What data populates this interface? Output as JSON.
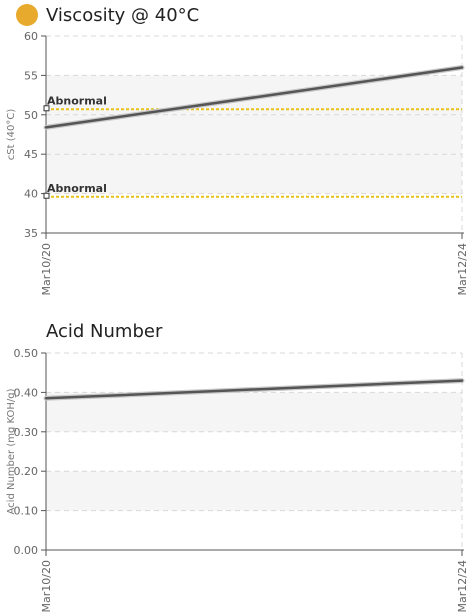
{
  "status_color": "#E8AA2C",
  "chart_data": [
    {
      "type": "line",
      "title": "Viscosity @ 40°C",
      "ylabel": "cSt (40°C)",
      "xlabel": "",
      "categories": [
        "Mar10/20",
        "Mar12/24"
      ],
      "series": [
        {
          "values": [
            48.4,
            56.0
          ],
          "color": "#555555"
        }
      ],
      "ylim": [
        35,
        60
      ],
      "yticks": [
        "35",
        "40",
        "45",
        "50",
        "55",
        "60"
      ],
      "grid": true,
      "thresholds": [
        {
          "label": "Abnormal",
          "value": 50.7,
          "color": "#E8C21A"
        },
        {
          "label": "Abnormal",
          "value": 39.6,
          "color": "#E8C21A"
        }
      ],
      "bands": [
        {
          "from": 35,
          "to": 40,
          "color": "#ffffff"
        },
        {
          "from": 40,
          "to": 45,
          "color": "#f5f5f5"
        },
        {
          "from": 45,
          "to": 50,
          "color": "#f5f5f5"
        },
        {
          "from": 50,
          "to": 55,
          "color": "#f5f5f5"
        },
        {
          "from": 55,
          "to": 60,
          "color": "#ffffff"
        }
      ]
    },
    {
      "type": "line",
      "title": "Acid Number",
      "ylabel": "Acid Number (mg KOH/g)",
      "xlabel": "",
      "categories": [
        "Mar10/20",
        "Mar12/24"
      ],
      "series": [
        {
          "values": [
            0.385,
            0.43
          ],
          "color": "#555555"
        }
      ],
      "ylim": [
        0,
        0.5
      ],
      "yticks": [
        "0.00",
        "0.10",
        "0.20",
        "0.30",
        "0.40",
        "0.50"
      ],
      "grid": true,
      "thresholds": [],
      "bands": [
        {
          "from": 0.0,
          "to": 0.1,
          "color": "#ffffff"
        },
        {
          "from": 0.1,
          "to": 0.2,
          "color": "#f5f5f5"
        },
        {
          "from": 0.2,
          "to": 0.3,
          "color": "#ffffff"
        },
        {
          "from": 0.3,
          "to": 0.4,
          "color": "#f5f5f5"
        },
        {
          "from": 0.4,
          "to": 0.5,
          "color": "#ffffff"
        }
      ]
    }
  ]
}
